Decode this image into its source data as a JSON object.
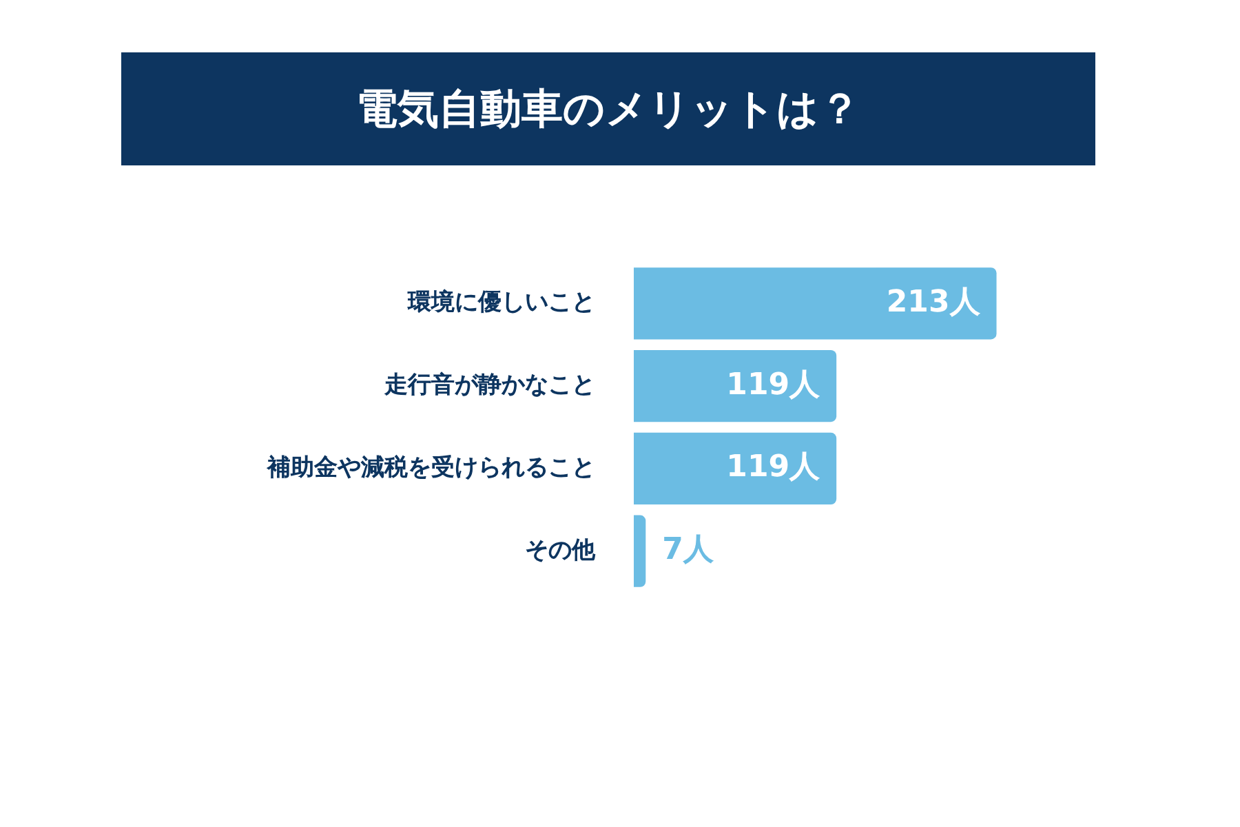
{
  "chart_data": {
    "type": "bar",
    "orientation": "horizontal",
    "title": "電気自動車のメリットは？",
    "categories": [
      "環境に優しいこと",
      "走行音が静かなこと",
      "補助金や減税を受けられること",
      "その他"
    ],
    "values": [
      213,
      119,
      119,
      7
    ],
    "value_labels": [
      "213人",
      "119人",
      "119人",
      "7人"
    ],
    "color": "#6bbce3"
  }
}
